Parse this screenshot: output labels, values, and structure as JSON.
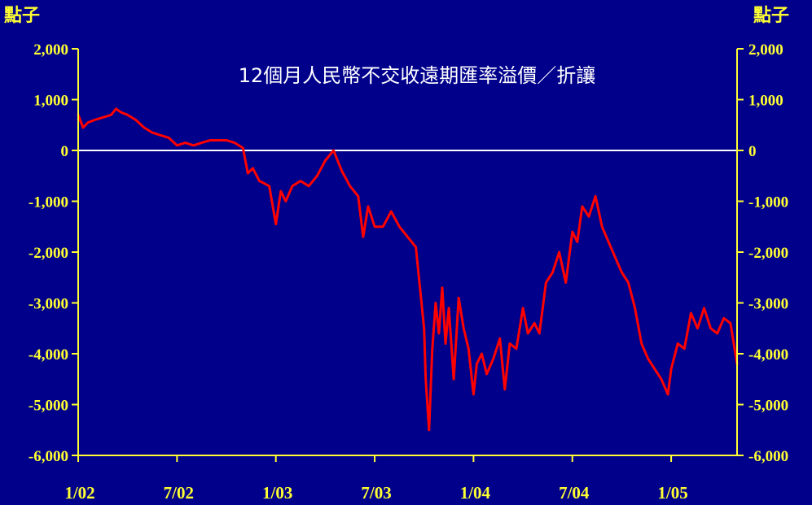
{
  "chart_data": {
    "type": "line",
    "title": "12個月人民幣不交收遠期匯率溢價／折讓",
    "ylabel_left": "點子",
    "ylabel_right": "點子",
    "ylim": [
      -6000,
      2000
    ],
    "yticks": [
      2000,
      1000,
      0,
      -1000,
      -2000,
      -3000,
      -4000,
      -5000,
      -6000
    ],
    "ytick_labels": [
      "2,000",
      "1,000",
      "0",
      "-1,000",
      "-2,000",
      "-3,000",
      "-4,000",
      "-5,000",
      "-6,000"
    ],
    "xlim": [
      0,
      40
    ],
    "xticks": [
      0,
      6,
      12,
      18,
      24,
      30,
      36
    ],
    "xtick_labels": [
      "1/02",
      "7/02",
      "1/03",
      "7/03",
      "1/04",
      "7/04",
      "1/05"
    ],
    "zero_line": true,
    "series": [
      {
        "color": "#FF0000",
        "x": [
          0,
          0.3,
          0.6,
          1.0,
          1.5,
          2.0,
          2.3,
          2.6,
          3.0,
          3.5,
          4.0,
          4.5,
          5.0,
          5.5,
          6.0,
          6.5,
          7.0,
          7.5,
          8.0,
          8.5,
          9.0,
          9.5,
          10.0,
          10.3,
          10.6,
          11.0,
          11.3,
          11.6,
          12.0,
          12.3,
          12.6,
          13.0,
          13.5,
          14.0,
          14.5,
          15.0,
          15.5,
          16.0,
          16.5,
          17.0,
          17.3,
          17.6,
          18.0,
          18.5,
          19.0,
          19.5,
          20.0,
          20.5,
          21.0,
          21.1,
          21.3,
          21.5,
          21.7,
          21.9,
          22.1,
          22.3,
          22.5,
          22.8,
          23.1,
          23.4,
          23.7,
          24.0,
          24.2,
          24.5,
          24.8,
          25.2,
          25.6,
          25.9,
          26.2,
          26.6,
          27.0,
          27.3,
          27.7,
          28.0,
          28.4,
          28.8,
          29.2,
          29.6,
          30.0,
          30.3,
          30.6,
          31.0,
          31.4,
          31.8,
          32.2,
          32.6,
          33.0,
          33.4,
          33.8,
          34.2,
          34.6,
          35.0,
          35.4,
          35.8,
          36.0,
          36.4,
          36.8,
          37.2,
          37.6,
          38.0,
          38.4,
          38.8,
          39.2,
          39.6,
          40.0
        ],
        "y": [
          700,
          450,
          550,
          600,
          650,
          700,
          820,
          750,
          700,
          600,
          450,
          350,
          300,
          250,
          100,
          150,
          100,
          150,
          200,
          200,
          200,
          150,
          50,
          -450,
          -350,
          -600,
          -650,
          -700,
          -1450,
          -800,
          -1000,
          -700,
          -600,
          -700,
          -500,
          -200,
          0,
          -400,
          -700,
          -900,
          -1700,
          -1100,
          -1500,
          -1500,
          -1200,
          -1500,
          -1700,
          -1900,
          -3500,
          -4500,
          -5500,
          -3900,
          -3000,
          -3600,
          -2700,
          -3800,
          -3100,
          -4500,
          -2900,
          -3500,
          -3900,
          -4800,
          -4200,
          -4000,
          -4400,
          -4100,
          -3700,
          -4700,
          -3800,
          -3900,
          -3100,
          -3600,
          -3400,
          -3600,
          -2600,
          -2400,
          -2000,
          -2600,
          -1600,
          -1800,
          -1100,
          -1300,
          -900,
          -1500,
          -1800,
          -2100,
          -2400,
          -2600,
          -3100,
          -3800,
          -4100,
          -4300,
          -4500,
          -4800,
          -4300,
          -3800,
          -3900,
          -3200,
          -3500,
          -3100,
          -3500,
          -3600,
          -3300,
          -3400,
          -4200
        ]
      }
    ]
  }
}
